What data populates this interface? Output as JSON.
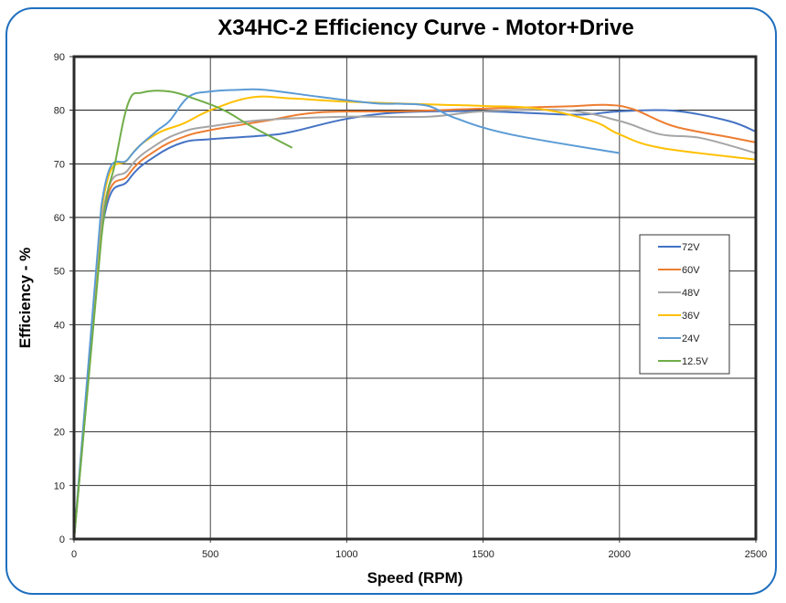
{
  "chart_data": {
    "type": "line",
    "title": "X34HC-2 Efficiency Curve - Motor+Drive",
    "xlabel": "Speed (RPM)",
    "ylabel": "Efficiency - %",
    "xlim": [
      0,
      2500
    ],
    "ylim": [
      0,
      90
    ],
    "xticks": [
      0,
      500,
      1000,
      1500,
      2000,
      2500
    ],
    "yticks": [
      0,
      10,
      20,
      30,
      40,
      50,
      60,
      70,
      80,
      90
    ],
    "grid": true,
    "legend_position": "right",
    "series": [
      {
        "name": "72V",
        "color": "#4472C4",
        "x": [
          0,
          100,
          200,
          300,
          400,
          500,
          700,
          800,
          1000,
          1200,
          1500,
          1800,
          1900,
          2000,
          2200,
          2400,
          2500
        ],
        "y": [
          0,
          57,
          67,
          71.5,
          74,
          74.6,
          75.3,
          76,
          78.4,
          79.6,
          79.8,
          79.2,
          79.3,
          79.8,
          79.9,
          78,
          76
        ]
      },
      {
        "name": "60V",
        "color": "#ED7D31",
        "x": [
          0,
          100,
          200,
          300,
          400,
          500,
          700,
          900,
          1200,
          1500,
          1800,
          1950,
          2050,
          2200,
          2400,
          2500
        ],
        "y": [
          0,
          58,
          68,
          72.5,
          75,
          76.3,
          78,
          79.6,
          79.8,
          80.3,
          80.7,
          81,
          80.2,
          77,
          75,
          74
        ]
      },
      {
        "name": "48V",
        "color": "#A5A5A5",
        "x": [
          0,
          100,
          200,
          300,
          400,
          500,
          700,
          1000,
          1300,
          1500,
          1800,
          2000,
          2150,
          2300,
          2500
        ],
        "y": [
          0,
          59,
          69,
          73.5,
          76,
          77,
          78.2,
          78.8,
          78.8,
          79.8,
          80,
          78,
          75.5,
          74.8,
          72
        ]
      },
      {
        "name": "36V",
        "color": "#FFC000",
        "x": [
          0,
          100,
          200,
          300,
          400,
          500,
          650,
          800,
          1000,
          1300,
          1500,
          1700,
          1900,
          2000,
          2150,
          2500
        ],
        "y": [
          0,
          61,
          71,
          75.5,
          77.5,
          80,
          82.4,
          82.2,
          81.6,
          81.1,
          80.8,
          80.3,
          78,
          75.5,
          73,
          70.8
        ]
      },
      {
        "name": "24V",
        "color": "#5B9BD5",
        "x": [
          0,
          100,
          200,
          300,
          350,
          420,
          500,
          600,
          700,
          900,
          1100,
          1200,
          1300,
          1400,
          1600,
          2000
        ],
        "y": [
          0,
          62,
          71,
          76,
          78,
          82.5,
          83.5,
          83.8,
          83.8,
          82.5,
          81.3,
          81.2,
          80.8,
          78.5,
          75.5,
          72
        ]
      },
      {
        "name": "12.5V",
        "color": "#70AD47",
        "x": [
          0,
          100,
          150,
          200,
          250,
          350,
          450,
          550,
          650,
          800
        ],
        "y": [
          0,
          56,
          70,
          81.5,
          83.3,
          83.5,
          82,
          80,
          77,
          73
        ]
      }
    ]
  },
  "frame_color": "#1f6fbf"
}
